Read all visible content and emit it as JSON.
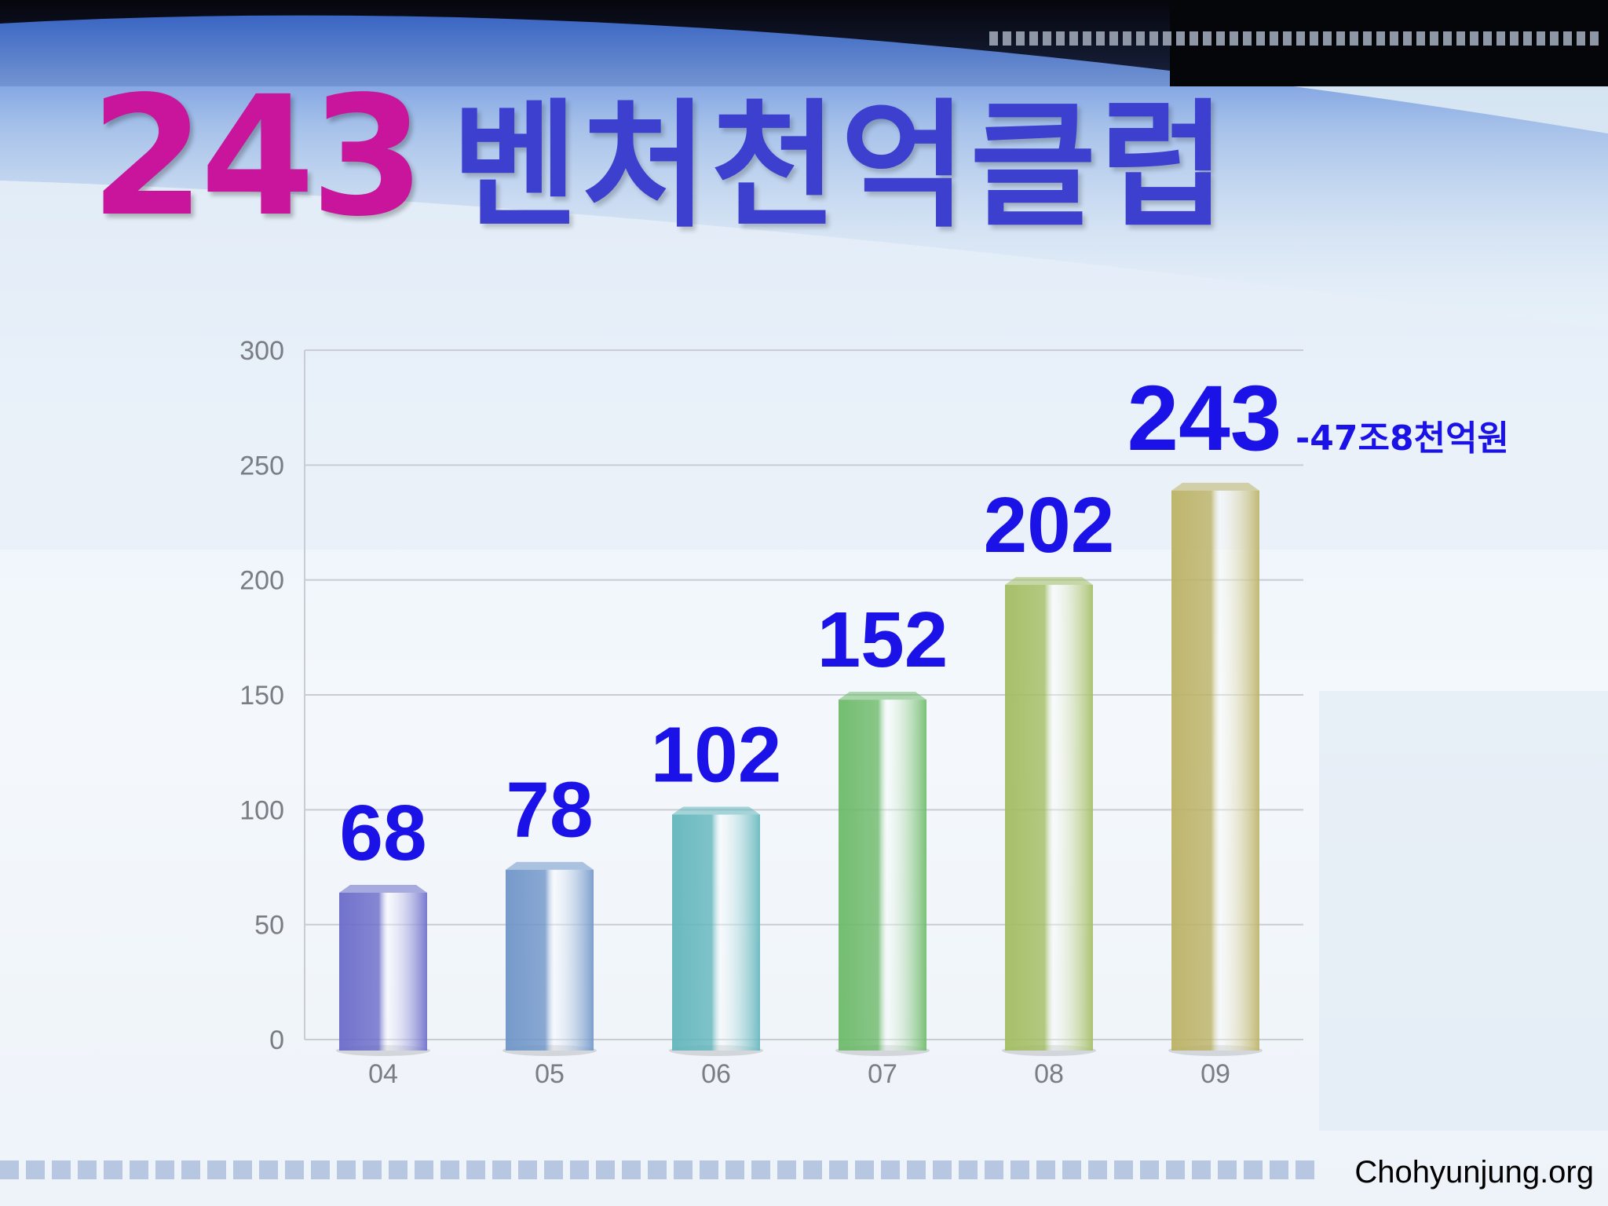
{
  "slide": {
    "title_number": "243",
    "title_text": "벤처천억클럽",
    "watermark": "Chohyunjung.org"
  },
  "chart_data": {
    "type": "bar",
    "categories": [
      "04",
      "05",
      "06",
      "07",
      "08",
      "09"
    ],
    "values": [
      68,
      78,
      102,
      152,
      202,
      243
    ],
    "data_labels": [
      "68",
      "78",
      "102",
      "152",
      "202",
      "243"
    ],
    "annotation": "-47조8천억원",
    "title": "",
    "xlabel": "",
    "ylabel": "",
    "ylim": [
      0,
      300
    ],
    "yticks": [
      0,
      50,
      100,
      150,
      200,
      250,
      300
    ],
    "grid": true,
    "bar_colors": [
      "#6a6bc9",
      "#6f95c8",
      "#62b6bc",
      "#6dba6a",
      "#a3bd62",
      "#bcb265"
    ],
    "label_color": "#1a12e6"
  }
}
